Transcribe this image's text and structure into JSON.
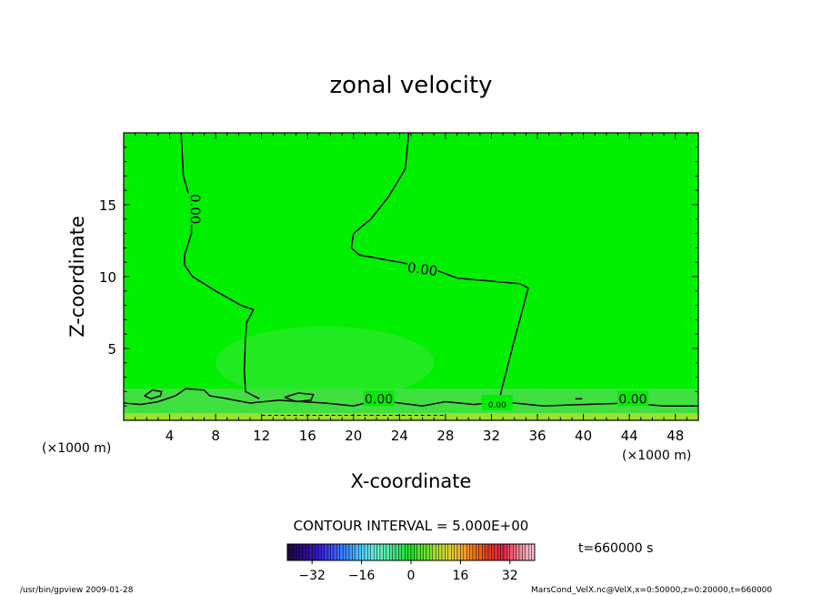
{
  "chart_data": {
    "type": "contour",
    "title": "zonal velocity",
    "xlabel": "X-coordinate",
    "ylabel": "Z-coordinate",
    "x_unit_left": "(×1000 m)",
    "x_unit_right": "(×1000 m)",
    "xlim": [
      0,
      50
    ],
    "ylim": [
      0,
      20
    ],
    "xticks": [
      4,
      8,
      12,
      16,
      20,
      24,
      28,
      32,
      36,
      40,
      44,
      48
    ],
    "yticks": [
      5,
      10,
      15
    ],
    "contour_interval_text": "CONTOUR INTERVAL = 5.000E+00",
    "time_text": "t=660000 s",
    "colorbar": {
      "min": -40,
      "max": 40,
      "ticks": [
        -32,
        -16,
        0,
        16,
        32
      ],
      "colors": [
        "#1a0a40",
        "#2a0a8a",
        "#3a1acc",
        "#3a5aff",
        "#3a9aff",
        "#5ad8f0",
        "#6af0c0",
        "#40e080",
        "#20e020",
        "#70e030",
        "#c0e030",
        "#f0c030",
        "#f08020",
        "#e04020",
        "#e02040",
        "#f08090",
        "#f8c0d0"
      ]
    },
    "contour_labels": [
      "0.00",
      "0.00",
      "0.00",
      "0.00",
      "0.00"
    ],
    "field_fill": "#00f000",
    "near_surface_fill": "#40e040"
  },
  "footer": {
    "left": "/usr/bin/gpview   2009-01-28",
    "right": "MarsCond_VelX.nc@VelX,x=0:50000,z=0:20000,t=660000"
  }
}
